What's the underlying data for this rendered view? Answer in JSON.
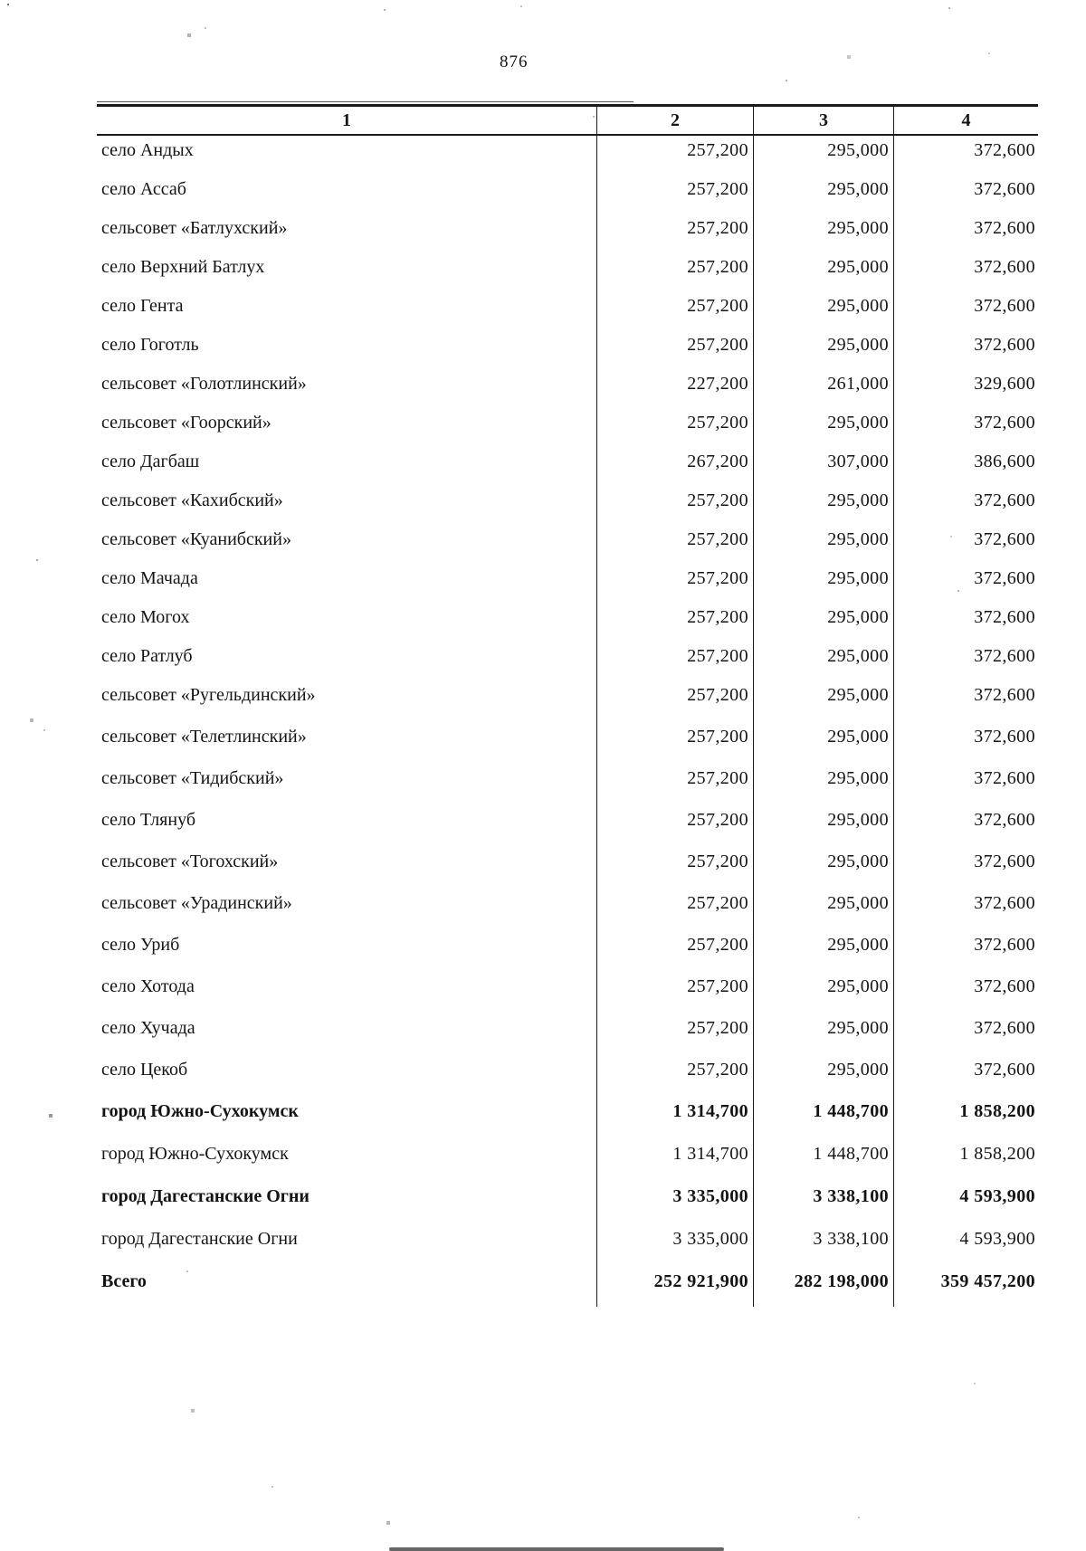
{
  "page": {
    "number": "876"
  },
  "table": {
    "columns": [
      "1",
      "2",
      "3",
      "4"
    ],
    "rows": [
      {
        "name": "село Андых",
        "v2": "257,200",
        "v3": "295,000",
        "v4": "372,600",
        "bold": false
      },
      {
        "name": "село Ассаб",
        "v2": "257,200",
        "v3": "295,000",
        "v4": "372,600",
        "bold": false
      },
      {
        "name": "сельсовет «Батлухский»",
        "v2": "257,200",
        "v3": "295,000",
        "v4": "372,600",
        "bold": false
      },
      {
        "name": "село Верхний Батлух",
        "v2": "257,200",
        "v3": "295,000",
        "v4": "372,600",
        "bold": false
      },
      {
        "name": "село Гента",
        "v2": "257,200",
        "v3": "295,000",
        "v4": "372,600",
        "bold": false
      },
      {
        "name": "село Гоготль",
        "v2": "257,200",
        "v3": "295,000",
        "v4": "372,600",
        "bold": false
      },
      {
        "name": "сельсовет «Голотлинский»",
        "v2": "227,200",
        "v3": "261,000",
        "v4": "329,600",
        "bold": false
      },
      {
        "name": "сельсовет «Гоорский»",
        "v2": "257,200",
        "v3": "295,000",
        "v4": "372,600",
        "bold": false
      },
      {
        "name": "село Дагбаш",
        "v2": "267,200",
        "v3": "307,000",
        "v4": "386,600",
        "bold": false
      },
      {
        "name": "сельсовет «Кахибский»",
        "v2": "257,200",
        "v3": "295,000",
        "v4": "372,600",
        "bold": false
      },
      {
        "name": "сельсовет «Куанибский»",
        "v2": "257,200",
        "v3": "295,000",
        "v4": "372,600",
        "bold": false
      },
      {
        "name": "село Мачада",
        "v2": "257,200",
        "v3": "295,000",
        "v4": "372,600",
        "bold": false
      },
      {
        "name": "село Могох",
        "v2": "257,200",
        "v3": "295,000",
        "v4": "372,600",
        "bold": false
      },
      {
        "name": "село Ратлуб",
        "v2": "257,200",
        "v3": "295,000",
        "v4": "372,600",
        "bold": false
      },
      {
        "name": "сельсовет «Ругельдинский»",
        "v2": "257,200",
        "v3": "295,000",
        "v4": "372,600",
        "bold": false
      },
      {
        "name": "сельсовет «Телетлинский»",
        "v2": "257,200",
        "v3": "295,000",
        "v4": "372,600",
        "bold": false
      },
      {
        "name": "сельсовет «Тидибский»",
        "v2": "257,200",
        "v3": "295,000",
        "v4": "372,600",
        "bold": false
      },
      {
        "name": "село Тлянуб",
        "v2": "257,200",
        "v3": "295,000",
        "v4": "372,600",
        "bold": false
      },
      {
        "name": "сельсовет «Тогохский»",
        "v2": "257,200",
        "v3": "295,000",
        "v4": "372,600",
        "bold": false
      },
      {
        "name": "сельсовет «Урадинский»",
        "v2": "257,200",
        "v3": "295,000",
        "v4": "372,600",
        "bold": false
      },
      {
        "name": "село Уриб",
        "v2": "257,200",
        "v3": "295,000",
        "v4": "372,600",
        "bold": false
      },
      {
        "name": "село Хотода",
        "v2": "257,200",
        "v3": "295,000",
        "v4": "372,600",
        "bold": false
      },
      {
        "name": "село Хучада",
        "v2": "257,200",
        "v3": "295,000",
        "v4": "372,600",
        "bold": false
      },
      {
        "name": "село Цекоб",
        "v2": "257,200",
        "v3": "295,000",
        "v4": "372,600",
        "bold": false
      },
      {
        "name": "город Южно-Сухокумск",
        "v2": "1 314,700",
        "v3": "1 448,700",
        "v4": "1 858,200",
        "bold": true
      },
      {
        "name": "город Южно-Сухокумск",
        "v2": "1 314,700",
        "v3": "1 448,700",
        "v4": "1 858,200",
        "bold": false
      },
      {
        "name": "город Дагестанские Огни",
        "v2": "3 335,000",
        "v3": "3 338,100",
        "v4": "4 593,900",
        "bold": true
      },
      {
        "name": "город Дагестанские Огни",
        "v2": "3 335,000",
        "v3": "3 338,100",
        "v4": "4 593,900",
        "bold": false
      },
      {
        "name": "Всего",
        "v2": "252 921,900",
        "v3": "282 198,000",
        "v4": "359 457,200",
        "bold": true
      }
    ]
  }
}
